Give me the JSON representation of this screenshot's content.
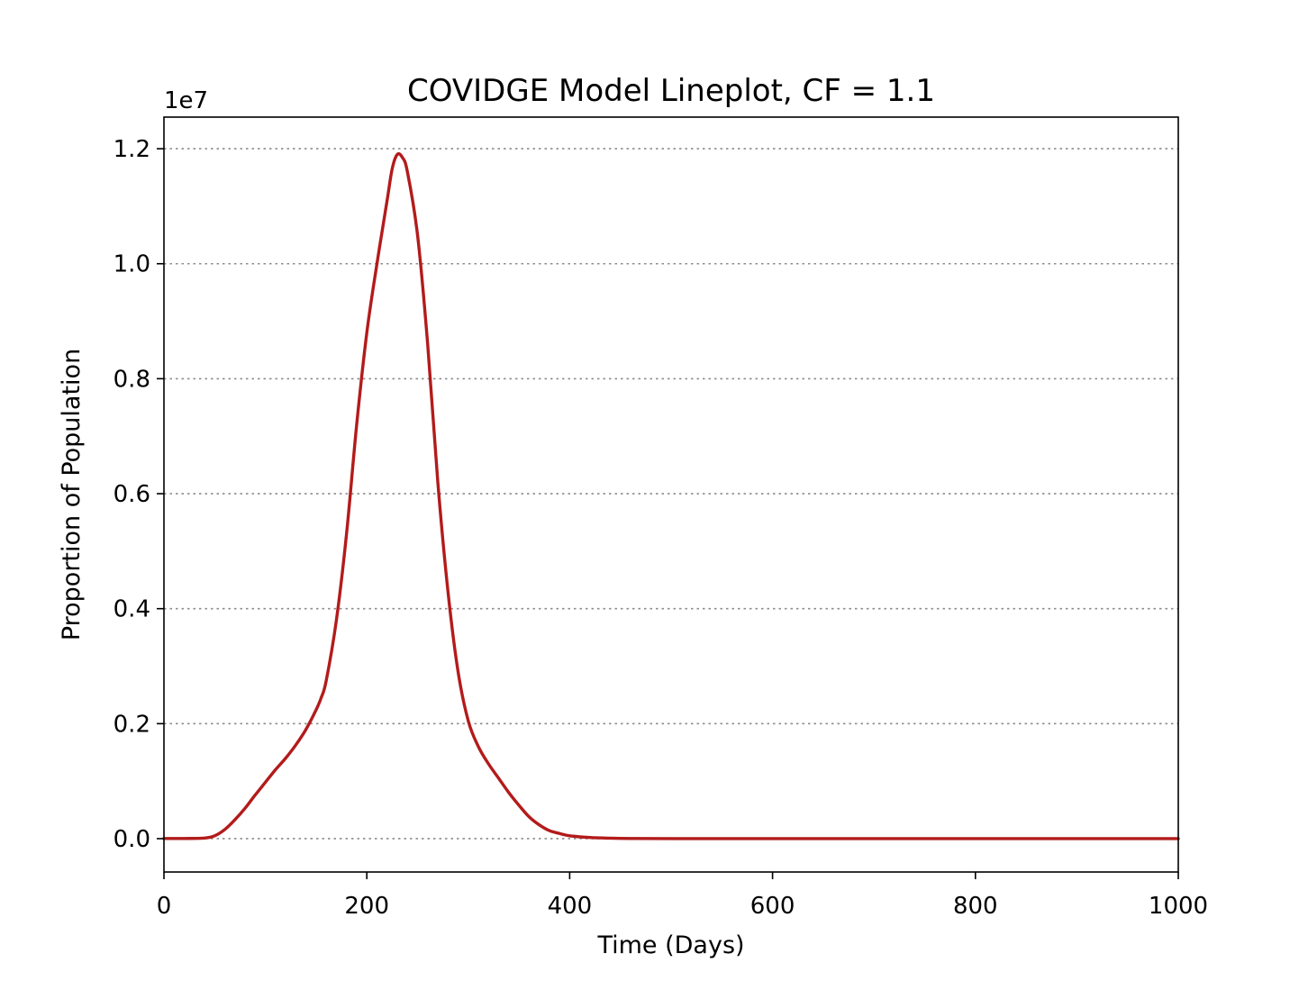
{
  "chart_data": {
    "type": "line",
    "title": "COVIDGE Model Lineplot, CF = 1.1",
    "xlabel": "Time (Days)",
    "ylabel": "Proportion of Population",
    "y_offset_label": "1e7",
    "xlim": [
      0,
      1000
    ],
    "ylim": [
      -0.058,
      1.255
    ],
    "xticks": [
      0,
      200,
      400,
      600,
      800,
      1000
    ],
    "xtick_labels": [
      "0",
      "200",
      "400",
      "600",
      "800",
      "1000"
    ],
    "yticks": [
      0.0,
      0.2,
      0.4,
      0.6,
      0.8,
      1.0,
      1.2
    ],
    "ytick_labels": [
      "0.0",
      "0.2",
      "0.4",
      "0.6",
      "0.8",
      "1.0",
      "1.2"
    ],
    "grid": "horizontal-dotted",
    "legend": "none",
    "series": [
      {
        "color": "#b31b1b",
        "x": [
          0,
          20,
          40,
          50,
          60,
          70,
          80,
          90,
          100,
          110,
          120,
          130,
          140,
          150,
          155,
          160,
          170,
          180,
          190,
          200,
          210,
          220,
          225,
          230,
          235,
          240,
          250,
          260,
          270,
          280,
          290,
          300,
          310,
          320,
          330,
          340,
          350,
          360,
          370,
          380,
          390,
          400,
          420,
          440,
          460,
          500,
          600,
          700,
          800,
          900,
          1000
        ],
        "y": [
          0.0003,
          0.0003,
          0.001,
          0.005,
          0.016,
          0.033,
          0.053,
          0.076,
          0.098,
          0.12,
          0.14,
          0.163,
          0.19,
          0.224,
          0.245,
          0.275,
          0.38,
          0.53,
          0.72,
          0.88,
          1.0,
          1.11,
          1.165,
          1.19,
          1.185,
          1.16,
          1.05,
          0.86,
          0.62,
          0.43,
          0.29,
          0.205,
          0.16,
          0.13,
          0.105,
          0.08,
          0.058,
          0.038,
          0.024,
          0.014,
          0.009,
          0.005,
          0.002,
          0.0008,
          0.0003,
          0.0001,
          0.0,
          0.0,
          0.0,
          0.0,
          0.0
        ]
      }
    ]
  }
}
